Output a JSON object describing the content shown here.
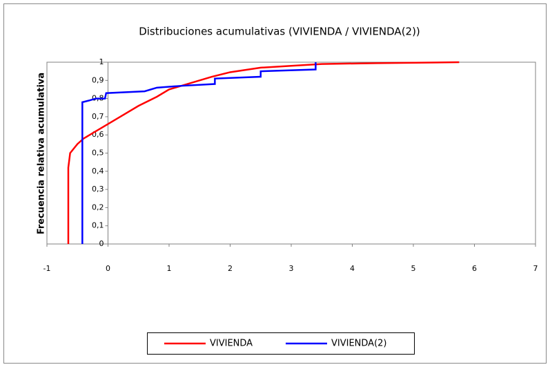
{
  "chart_data": {
    "type": "line",
    "title": "Distribuciones acumulativas (VIVIENDA / VIVIENDA(2))",
    "y_label": "Frecuencia relativa acumulativa",
    "xlim": [
      -1,
      7
    ],
    "xticks": [
      -1,
      0,
      1,
      2,
      3,
      4,
      5,
      6,
      7
    ],
    "ylim": [
      0,
      1
    ],
    "yticks": [
      0,
      {
        "value": 0.1,
        "label": "0,1"
      },
      {
        "value": 0.2,
        "label": "0,2"
      },
      {
        "value": 0.3,
        "label": "0,3"
      },
      {
        "value": 0.4,
        "label": "0,4"
      },
      {
        "value": 0.5,
        "label": "0,5"
      },
      {
        "value": 0.6,
        "label": "0,6"
      },
      {
        "value": 0.7,
        "label": "0,7"
      },
      {
        "value": 0.8,
        "label": "0,8"
      },
      {
        "value": 0.9,
        "label": "0,9"
      },
      1
    ],
    "grid": false,
    "legend": "bottom",
    "series": [
      {
        "name": "VIVIENDA",
        "color": "#ff0000",
        "x": [
          -0.65,
          -0.65,
          -0.62,
          -0.5,
          -0.4,
          -0.2,
          0,
          0.2,
          0.5,
          0.8,
          1,
          1.3,
          1.7,
          2,
          2.5,
          3,
          3.5,
          4.4,
          5.75
        ],
        "values": [
          0,
          0.42,
          0.5,
          0.55,
          0.58,
          0.62,
          0.66,
          0.7,
          0.76,
          0.81,
          0.85,
          0.88,
          0.92,
          0.945,
          0.97,
          0.98,
          0.99,
          0.995,
          1
        ]
      },
      {
        "name": "VIVIENDA(2)",
        "color": "#0000ff",
        "x": [
          -0.42,
          -0.42,
          -0.3,
          -0.2,
          -0.05,
          -0.03,
          0.6,
          0.8,
          1.2,
          1.75,
          1.75,
          2.5,
          2.5,
          3.4,
          3.4
        ],
        "values": [
          0,
          0.78,
          0.79,
          0.8,
          0.8,
          0.83,
          0.84,
          0.86,
          0.87,
          0.88,
          0.91,
          0.92,
          0.95,
          0.96,
          1
        ]
      }
    ]
  }
}
